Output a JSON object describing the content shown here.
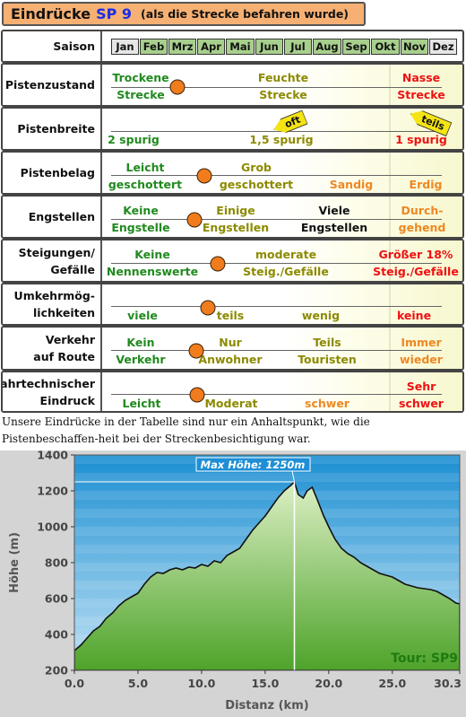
{
  "header": {
    "part1": "Eindrücke",
    "part2": "SP 9",
    "part3": "(als die Strecke befahren wurde)"
  },
  "saison": {
    "label": "Saison",
    "months": [
      {
        "name": "Jan",
        "active": false
      },
      {
        "name": "Feb",
        "active": true
      },
      {
        "name": "Mrz",
        "active": true
      },
      {
        "name": "Apr",
        "active": true
      },
      {
        "name": "Mai",
        "active": true
      },
      {
        "name": "Jun",
        "active": true
      },
      {
        "name": "Jul",
        "active": true
      },
      {
        "name": "Aug",
        "active": true
      },
      {
        "name": "Sep",
        "active": true
      },
      {
        "name": "Okt",
        "active": true
      },
      {
        "name": "Nov",
        "active": true
      },
      {
        "name": "Dez",
        "active": false
      }
    ]
  },
  "rows": {
    "pistenzustand": {
      "label": "Pistenzustand",
      "c1a": "Trockene",
      "c1b": "Strecke",
      "c2a": "Feuchte",
      "c2b": "Strecke",
      "c4a": "Nasse",
      "c4b": "Strecke"
    },
    "pistenbreite": {
      "label": "Pistenbreite",
      "c1": "2 spurig",
      "c2": "1,5 spurig",
      "c4": "1 spurig",
      "tag_mid": "oft",
      "tag_right": "teils"
    },
    "pistenbelag": {
      "label": "Pistenbelag",
      "c1a": "Leicht",
      "c1b": "geschottert",
      "c2a": "Grob",
      "c2b": "geschottert",
      "c3": "Sandig",
      "c4": "Erdig"
    },
    "engstellen": {
      "label": "Engstellen",
      "c1a": "Keine",
      "c1b": "Engstelle",
      "c2a": "Einige",
      "c2b": "Engstellen",
      "c3a": "Viele",
      "c3b": "Engstellen",
      "c4a": "Durch-",
      "c4b": "gehend"
    },
    "steigungen": {
      "label1": "Steigungen/",
      "label2": "Gefälle",
      "c1a": "Keine",
      "c1b": "Nennenswerte",
      "c2a": "moderate",
      "c2b": "Steig./Gefälle",
      "c4a": "Größer 18%",
      "c4b": "Steig./Gefälle"
    },
    "umkehr": {
      "label1": "Umkehrmög-",
      "label2": "lichkeiten",
      "c1": "viele",
      "c2": "teils",
      "c3": "wenig",
      "c4": "keine"
    },
    "verkehr": {
      "label1": "Verkehr",
      "label2": "auf Route",
      "c1a": "Kein",
      "c1b": "Verkehr",
      "c2a": "Nur",
      "c2b": "Anwohner",
      "c3a": "Teils",
      "c3b": "Touristen",
      "c4a": "Immer",
      "c4b": "wieder"
    },
    "fahrtech": {
      "label1": "Fahrtechnischer",
      "label2": "Eindruck",
      "c1": "Leicht",
      "c2": "Moderat",
      "c3": "schwer",
      "c4a": "Sehr",
      "c4b": "schwer"
    }
  },
  "note": "Unsere Eindrücke in der Tabelle sind nur ein Anhaltspunkt, wie die Pistenbeschaffen-heit bei der Streckenbesichtigung war.",
  "chart_data": {
    "type": "area",
    "ylabel": "Höhe (m)",
    "xlabel": "Distanz (km)",
    "xlim": [
      0,
      30.3
    ],
    "ylim": [
      200,
      1400
    ],
    "xticks": [
      "0.0",
      "5.0",
      "10.0",
      "15.0",
      "20.0",
      "25.0",
      "30.3"
    ],
    "yticks": [
      "200",
      "400",
      "600",
      "800",
      "1000",
      "1200",
      "1400"
    ],
    "annotation": "Max Höhe: 1250m",
    "badge": "Tour: SP9",
    "max_x": 17.3,
    "max_y": 1250,
    "x": [
      0,
      0.5,
      1,
      1.5,
      2,
      2.5,
      3,
      3.5,
      4,
      4.5,
      5,
      5.5,
      6,
      6.5,
      7,
      7.5,
      8,
      8.5,
      9,
      9.5,
      10,
      10.5,
      11,
      11.5,
      12,
      12.5,
      13,
      13.5,
      14,
      14.5,
      15,
      15.5,
      16,
      16.5,
      17,
      17.3,
      17.6,
      18,
      18.3,
      18.7,
      19.1,
      19.6,
      20,
      20.5,
      21,
      21.5,
      22,
      22.5,
      23,
      23.5,
      24,
      24.5,
      25,
      25.5,
      26,
      26.5,
      27,
      27.5,
      28,
      28.5,
      29,
      29.5,
      30,
      30.3
    ],
    "y": [
      310,
      340,
      380,
      420,
      445,
      490,
      520,
      560,
      590,
      610,
      630,
      680,
      720,
      745,
      740,
      760,
      770,
      760,
      775,
      770,
      790,
      780,
      810,
      800,
      840,
      860,
      880,
      930,
      980,
      1020,
      1060,
      1110,
      1160,
      1200,
      1230,
      1250,
      1180,
      1160,
      1200,
      1220,
      1150,
      1060,
      1000,
      930,
      880,
      850,
      830,
      800,
      780,
      760,
      740,
      730,
      720,
      700,
      680,
      670,
      660,
      655,
      650,
      640,
      620,
      600,
      575,
      570
    ]
  }
}
